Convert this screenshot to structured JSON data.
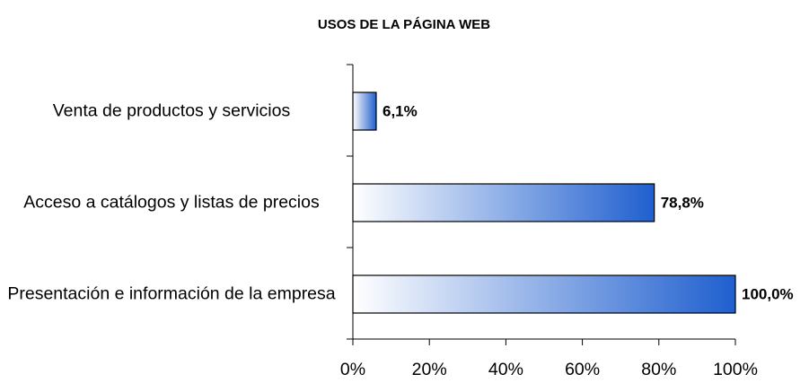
{
  "chart_data": {
    "type": "bar",
    "orientation": "horizontal",
    "title": "USOS DE LA PÁGINA WEB",
    "categories": [
      "Venta de productos y servicios",
      "Acceso a catálogos y listas de precios",
      "Presentación e información de la empresa"
    ],
    "values": [
      6.1,
      78.8,
      100.0
    ],
    "value_labels": [
      "6,1%",
      "78,8%",
      "100,0%"
    ],
    "color": "#1f5fcf",
    "xlim": [
      0,
      100
    ],
    "xticks": [
      {
        "value": 0,
        "label": "0%"
      },
      {
        "value": 20,
        "label": "20%"
      },
      {
        "value": 40,
        "label": "40%"
      },
      {
        "value": 60,
        "label": "60%"
      },
      {
        "value": 80,
        "label": "80%"
      },
      {
        "value": 100,
        "label": "100%"
      }
    ],
    "grid": false
  }
}
